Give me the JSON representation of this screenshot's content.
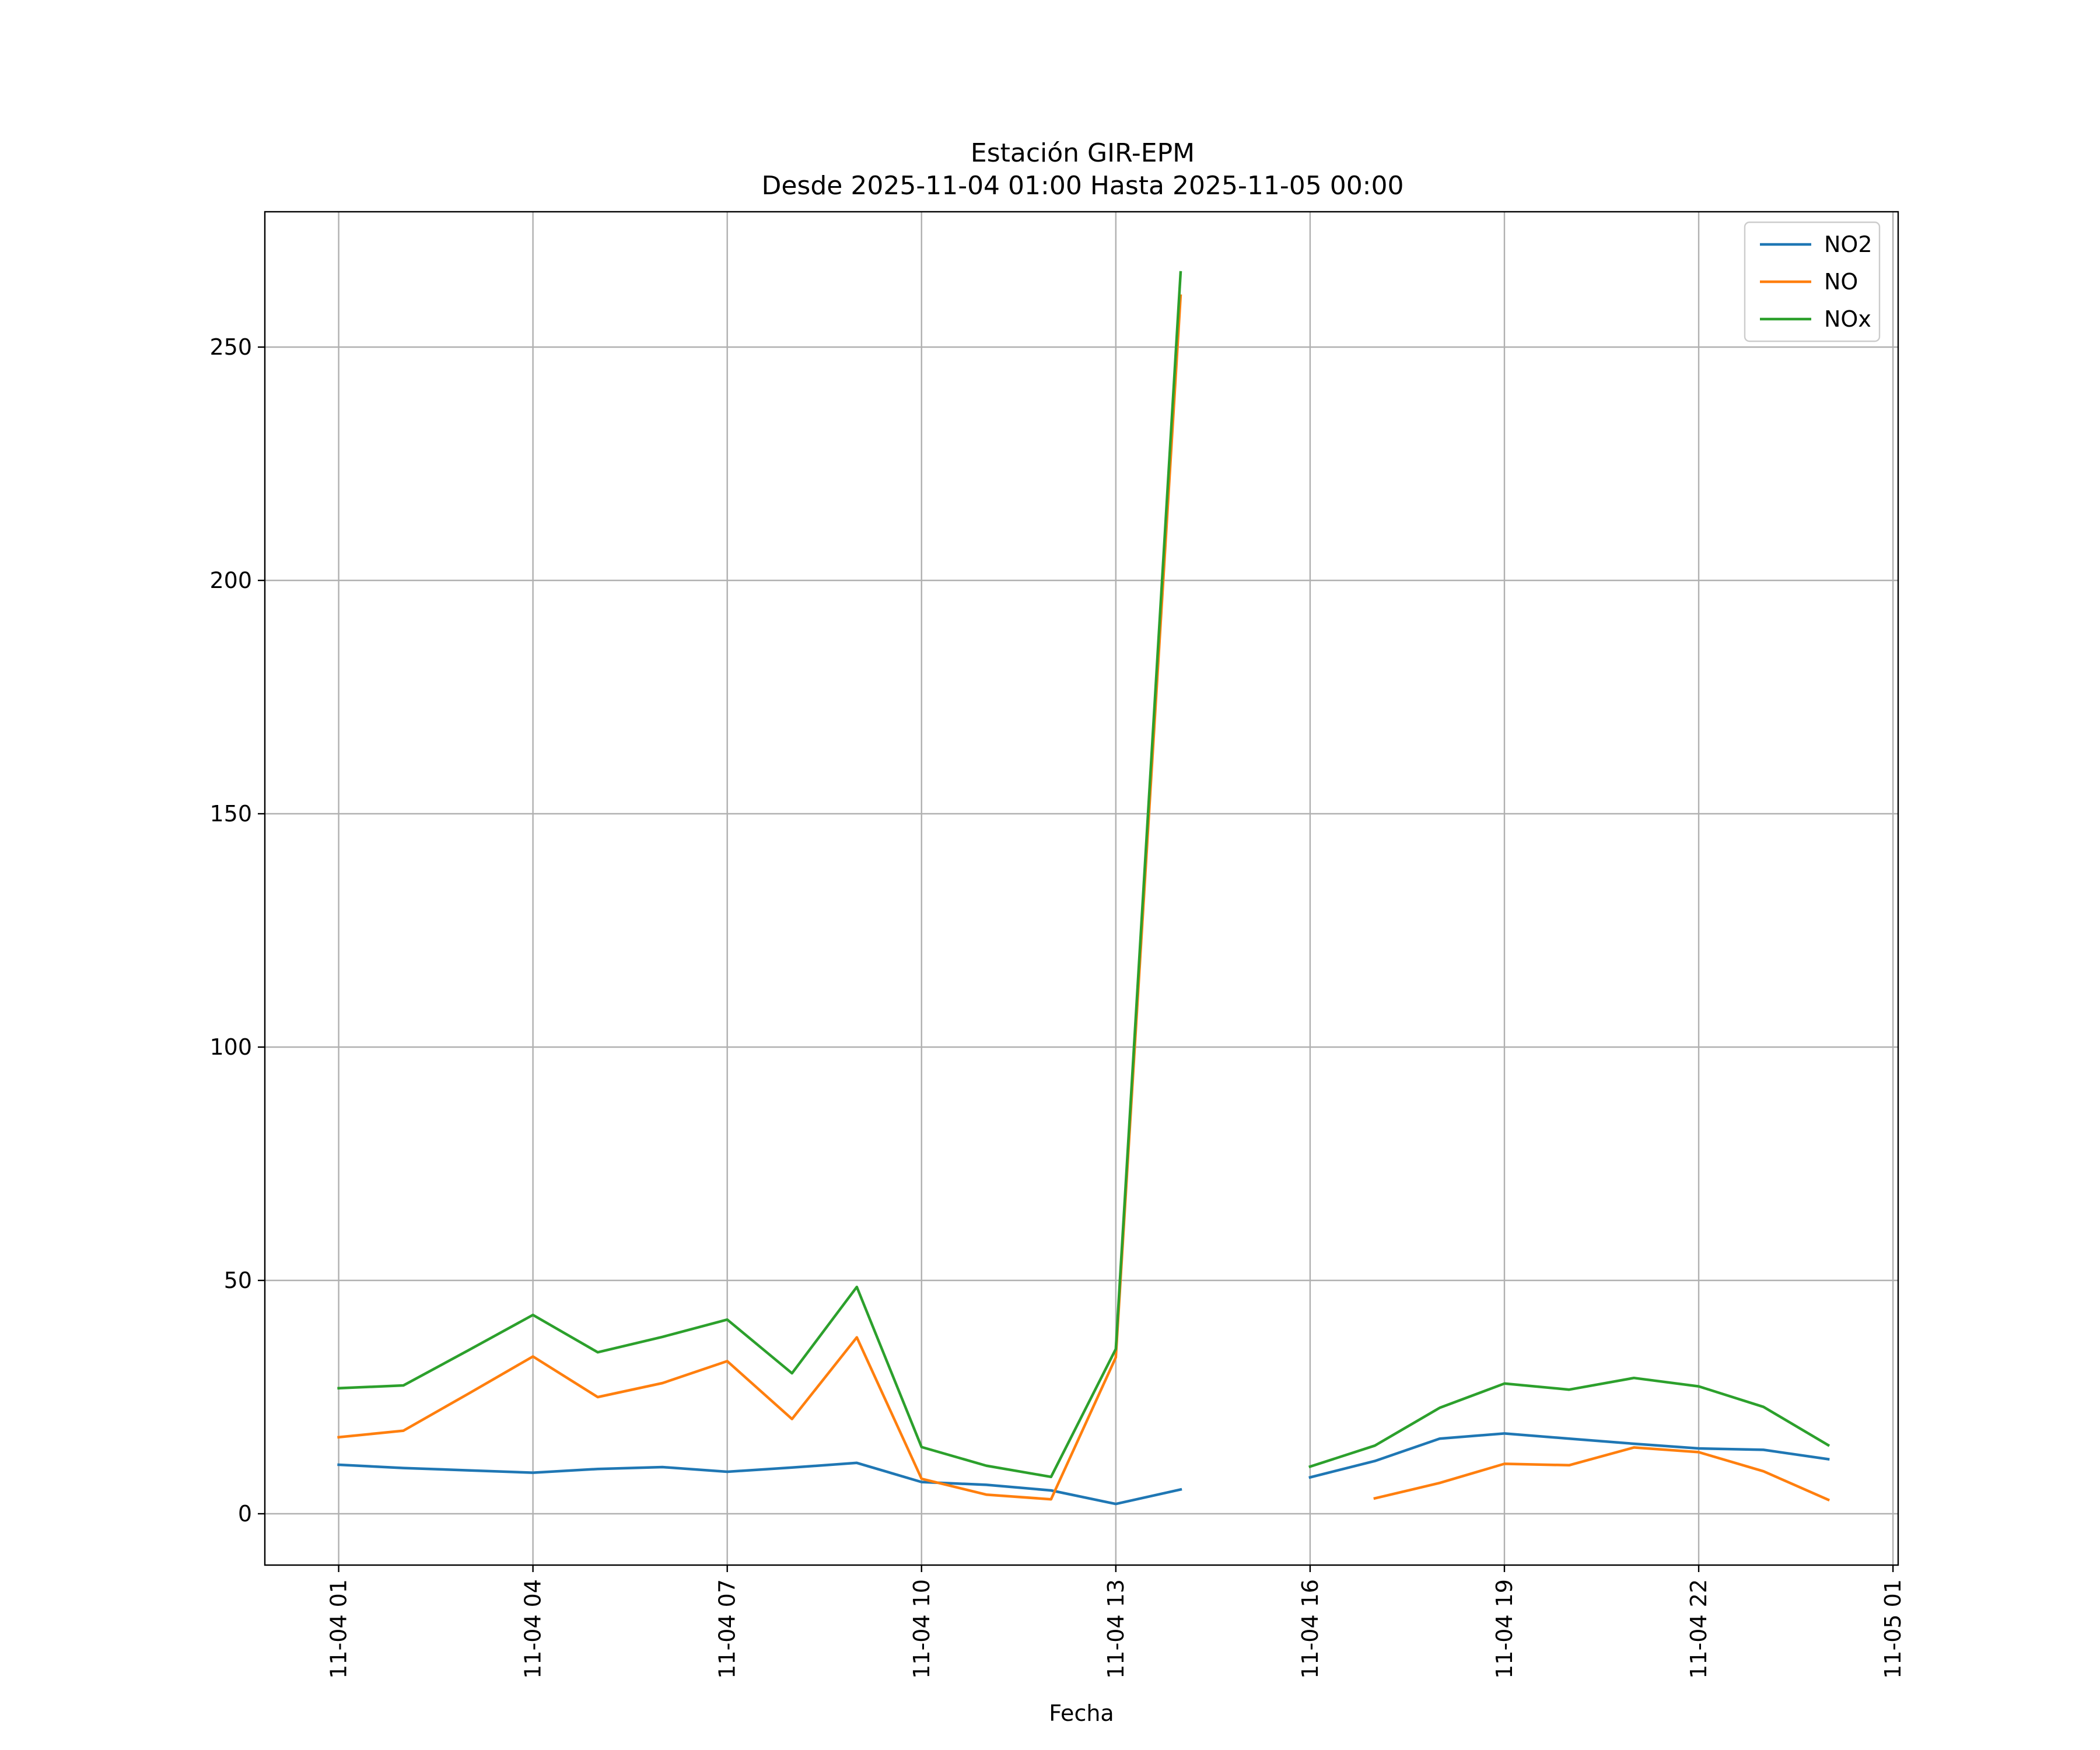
{
  "chart_data": {
    "type": "line",
    "title": "Estación GIR-EPM",
    "subtitle": "Desde 2025-11-04 01:00 Hasta 2025-11-05 00:00",
    "xlabel": "Fecha",
    "ylabel": "",
    "x": [
      "01:00",
      "02:00",
      "03:00",
      "04:00",
      "05:00",
      "06:00",
      "07:00",
      "08:00",
      "09:00",
      "10:00",
      "11:00",
      "12:00",
      "13:00",
      "14:00",
      "15:00",
      "16:00",
      "17:00",
      "18:00",
      "19:00",
      "20:00",
      "21:00",
      "22:00",
      "23:00",
      "00:00"
    ],
    "x_hours": [
      1,
      2,
      3,
      4,
      5,
      6,
      7,
      8,
      9,
      10,
      11,
      12,
      13,
      14,
      15,
      16,
      17,
      18,
      19,
      20,
      21,
      22,
      23,
      24
    ],
    "xlim_hours": [
      -0.14,
      25.08
    ],
    "ylim": [
      -11,
      279
    ],
    "x_ticks": [
      {
        "hour": 1,
        "label": "11-04 01"
      },
      {
        "hour": 4,
        "label": "11-04 04"
      },
      {
        "hour": 7,
        "label": "11-04 07"
      },
      {
        "hour": 10,
        "label": "11-04 10"
      },
      {
        "hour": 13,
        "label": "11-04 13"
      },
      {
        "hour": 16,
        "label": "11-04 16"
      },
      {
        "hour": 19,
        "label": "11-04 19"
      },
      {
        "hour": 22,
        "label": "11-04 22"
      },
      {
        "hour": 25,
        "label": "11-05 01"
      }
    ],
    "y_ticks": [
      0,
      50,
      100,
      150,
      200,
      250
    ],
    "grid": true,
    "legend_position": "top-right",
    "series": [
      {
        "name": "NO2",
        "color": "#1f77b4",
        "values": [
          10.5,
          9.8,
          9.3,
          8.8,
          9.6,
          10.0,
          9.0,
          9.9,
          10.9,
          6.8,
          6.2,
          5.0,
          2.1,
          5.2,
          null,
          7.8,
          11.3,
          16.1,
          17.2,
          16.1,
          15.0,
          14.0,
          13.7,
          11.7
        ]
      },
      {
        "name": "NO",
        "color": "#ff7f0e",
        "values": [
          16.4,
          17.8,
          25.7,
          33.7,
          25.0,
          28.0,
          32.7,
          20.3,
          37.8,
          7.5,
          4.1,
          3.1,
          33.5,
          261.0,
          null,
          null,
          3.3,
          6.6,
          10.7,
          10.4,
          14.2,
          13.2,
          9.1,
          3.0
        ]
      },
      {
        "name": "NOx",
        "color": "#2ca02c",
        "values": [
          26.9,
          27.5,
          35.0,
          42.6,
          34.6,
          37.9,
          41.6,
          30.1,
          48.6,
          14.3,
          10.3,
          7.9,
          35.3,
          266.0,
          null,
          10.1,
          14.6,
          22.7,
          27.9,
          26.6,
          29.1,
          27.3,
          22.9,
          14.7
        ]
      }
    ]
  }
}
